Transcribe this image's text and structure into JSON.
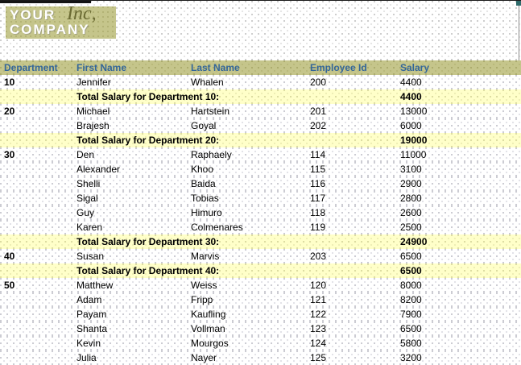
{
  "logo": {
    "line1": "YOUR",
    "line2": "COMPANY",
    "suffix": "Inc,"
  },
  "table": {
    "columns": [
      "Department",
      "First Name",
      "Last Name",
      "Employee Id",
      "Salary"
    ],
    "rows": [
      {
        "type": "data",
        "department": "10",
        "first_name": "Jennifer",
        "last_name": "Whalen",
        "employee_id": "200",
        "salary": "4400"
      },
      {
        "type": "total",
        "label": "Total Salary for Department 10:",
        "salary": "4400"
      },
      {
        "type": "data",
        "department": "20",
        "first_name": "Michael",
        "last_name": "Hartstein",
        "employee_id": "201",
        "salary": "13000"
      },
      {
        "type": "data",
        "department": "",
        "first_name": "Brajesh",
        "last_name": "Goyal",
        "employee_id": "202",
        "salary": "6000"
      },
      {
        "type": "total",
        "label": "Total Salary for Department 20:",
        "salary": "19000"
      },
      {
        "type": "data",
        "department": "30",
        "first_name": "Den",
        "last_name": "Raphaely",
        "employee_id": "114",
        "salary": "11000"
      },
      {
        "type": "data",
        "department": "",
        "first_name": "Alexander",
        "last_name": "Khoo",
        "employee_id": "115",
        "salary": "3100"
      },
      {
        "type": "data",
        "department": "",
        "first_name": "Shelli",
        "last_name": "Baida",
        "employee_id": "116",
        "salary": "2900"
      },
      {
        "type": "data",
        "department": "",
        "first_name": "Sigal",
        "last_name": "Tobias",
        "employee_id": "117",
        "salary": "2800"
      },
      {
        "type": "data",
        "department": "",
        "first_name": "Guy",
        "last_name": "Himuro",
        "employee_id": "118",
        "salary": "2600"
      },
      {
        "type": "data",
        "department": "",
        "first_name": "Karen",
        "last_name": "Colmenares",
        "employee_id": "119",
        "salary": "2500"
      },
      {
        "type": "total",
        "label": "Total Salary for Department 30:",
        "salary": "24900"
      },
      {
        "type": "data",
        "department": "40",
        "first_name": "Susan",
        "last_name": "Marvis",
        "employee_id": "203",
        "salary": "6500"
      },
      {
        "type": "total",
        "label": "Total Salary for Department 40:",
        "salary": "6500"
      },
      {
        "type": "data",
        "department": "50",
        "first_name": "Matthew",
        "last_name": "Weiss",
        "employee_id": "120",
        "salary": "8000"
      },
      {
        "type": "data",
        "department": "",
        "first_name": "Adam",
        "last_name": "Fripp",
        "employee_id": "121",
        "salary": "8200"
      },
      {
        "type": "data",
        "department": "",
        "first_name": "Payam",
        "last_name": "Kaufling",
        "employee_id": "122",
        "salary": "7900"
      },
      {
        "type": "data",
        "department": "",
        "first_name": "Shanta",
        "last_name": "Vollman",
        "employee_id": "123",
        "salary": "6500"
      },
      {
        "type": "data",
        "department": "",
        "first_name": "Kevin",
        "last_name": "Mourgos",
        "employee_id": "124",
        "salary": "5800"
      },
      {
        "type": "data",
        "department": "",
        "first_name": "Julia",
        "last_name": "Nayer",
        "employee_id": "125",
        "salary": "3200"
      }
    ]
  },
  "colors": {
    "header_bg": "#c5c58b",
    "total_row_bg": "#ffffc9",
    "header_text": "#336699",
    "department_text": "#336699",
    "body_text": "#000000",
    "logo_bg": "#c5c58b",
    "logo_inc_text": "#6b6b33",
    "scroll_corner": "#2e6b6b"
  }
}
